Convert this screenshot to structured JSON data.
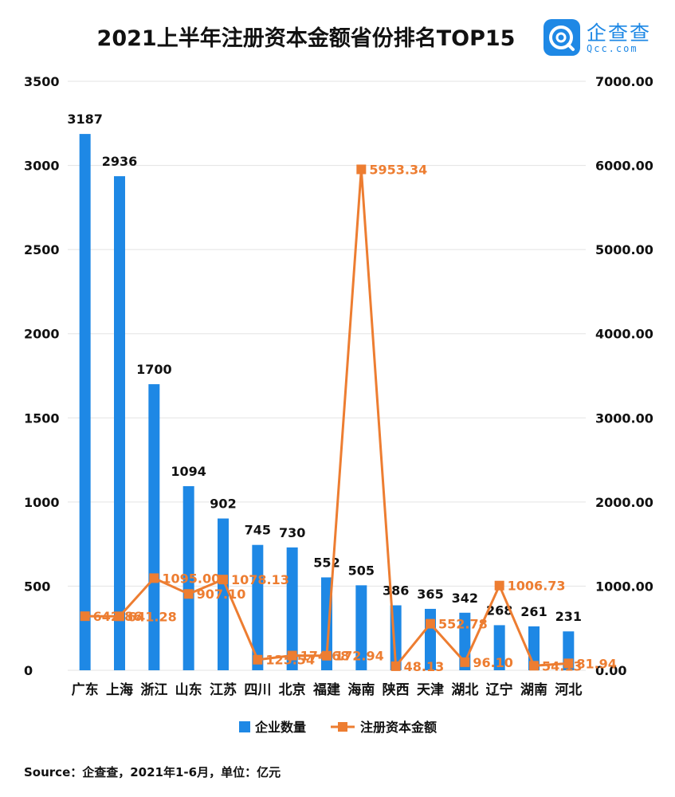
{
  "title": "2021上半年注册资本金额省份排名TOP15",
  "logo": {
    "name": "企查查",
    "domain": "Qcc.com"
  },
  "source": "Source：企查查，2021年1-6月，单位：亿元",
  "colors": {
    "bar": "#1e88e5",
    "line": "#ed7d31",
    "text": "#111111",
    "grid": "#e3e3e3"
  },
  "chart_data": {
    "type": "bar",
    "categories": [
      "广东",
      "上海",
      "浙江",
      "山东",
      "江苏",
      "四川",
      "北京",
      "福建",
      "海南",
      "陕西",
      "天津",
      "湖北",
      "辽宁",
      "湖南",
      "河北"
    ],
    "series": [
      {
        "name": "企业数量",
        "type": "bar",
        "axis": "left",
        "values": [
          3187,
          2936,
          1700,
          1094,
          902,
          745,
          730,
          552,
          505,
          386,
          365,
          342,
          268,
          261,
          231
        ],
        "labels": [
          "3187",
          "2936",
          "1700",
          "1094",
          "902",
          "745",
          "730",
          "552",
          "505",
          "386",
          "365",
          "342",
          "268",
          "261",
          "231"
        ]
      },
      {
        "name": "注册资本金额",
        "type": "line",
        "axis": "right",
        "values": [
          642.86,
          641.28,
          1095.0,
          907.1,
          1078.13,
          125.54,
          174.68,
          172.94,
          5953.34,
          48.13,
          552.78,
          96.1,
          1006.73,
          54.13,
          81.94
        ],
        "labels": [
          "642.86",
          "641.28",
          "1095.00",
          "907.10",
          "1078.13",
          "125.54",
          "174.68",
          "172.94",
          "5953.34",
          "48.13",
          "552.78",
          "96.10",
          "1006.73",
          "54.13",
          "81.94"
        ]
      }
    ],
    "y_left": {
      "ylim": [
        0,
        3500
      ],
      "ticks": [
        "0",
        "500",
        "1000",
        "1500",
        "2000",
        "2500",
        "3000",
        "3500"
      ]
    },
    "y_right": {
      "ylim": [
        0,
        7000
      ],
      "ticks": [
        "0.00",
        "1000.00",
        "2000.00",
        "3000.00",
        "4000.00",
        "5000.00",
        "6000.00",
        "7000.00"
      ]
    },
    "grid": true,
    "legend": "bottom"
  }
}
